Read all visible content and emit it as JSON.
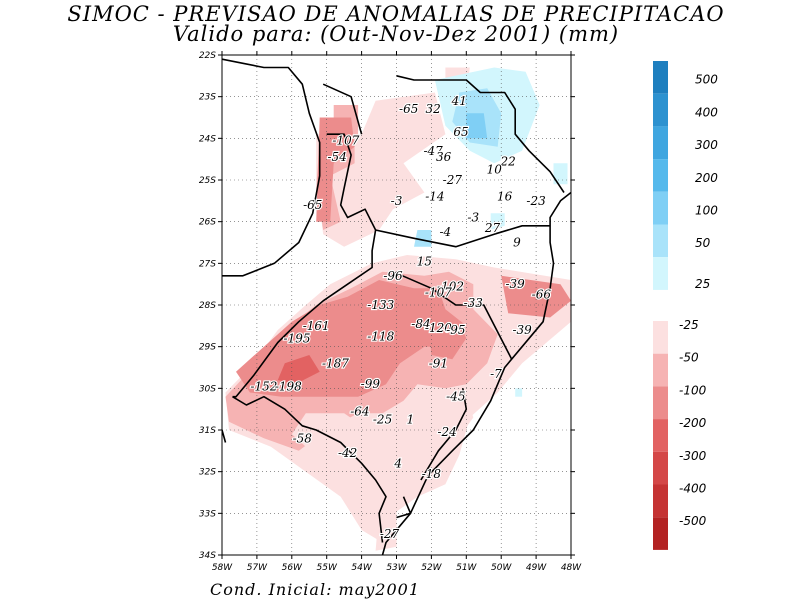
{
  "title_line1": "SIMOC - PREVISAO DE ANOMALIAS DE PRECIPITACAO",
  "title_line2": "Valido para: (Out-Nov-Dez 2001) (mm)",
  "footer": "Cond. Inicial: may2001",
  "lat_ticks": [
    "22S",
    "23S",
    "24S",
    "25S",
    "26S",
    "27S",
    "28S",
    "29S",
    "30S",
    "31S",
    "32S",
    "33S",
    "34S"
  ],
  "lon_ticks": [
    "58W",
    "57W",
    "56W",
    "55W",
    "54W",
    "53W",
    "52W",
    "51W",
    "50W",
    "49W",
    "48W"
  ],
  "colorbar_positive": [
    {
      "label": "500",
      "color": "#1e7fbf"
    },
    {
      "label": "400",
      "color": "#2d92d0"
    },
    {
      "label": "300",
      "color": "#3fa6e0"
    },
    {
      "label": "200",
      "color": "#55b9ec"
    },
    {
      "label": "100",
      "color": "#7fcff5"
    },
    {
      "label": "50",
      "color": "#a9e3fa"
    },
    {
      "label": "25",
      "color": "#d2f6fd"
    }
  ],
  "colorbar_negative": [
    {
      "label": "-25",
      "color": "#fce0e0"
    },
    {
      "label": "-50",
      "color": "#f6b3b3"
    },
    {
      "label": "-100",
      "color": "#ec8c8c"
    },
    {
      "label": "-200",
      "color": "#e26262"
    },
    {
      "label": "-300",
      "color": "#d44747"
    },
    {
      "label": "-400",
      "color": "#c53333"
    },
    {
      "label": "-500",
      "color": "#b32222"
    }
  ],
  "value_labels": [
    {
      "text": "-65",
      "lon": -52.65,
      "lat": -23.3
    },
    {
      "text": "32",
      "lon": -51.95,
      "lat": -23.3
    },
    {
      "text": "41",
      "lon": -51.2,
      "lat": -23.1
    },
    {
      "text": "65",
      "lon": -51.15,
      "lat": -23.85
    },
    {
      "text": "-107",
      "lon": -54.45,
      "lat": -24.05
    },
    {
      "text": "-47",
      "lon": -51.95,
      "lat": -24.3
    },
    {
      "text": "36",
      "lon": -51.65,
      "lat": -24.45
    },
    {
      "text": "22",
      "lon": -49.8,
      "lat": -24.55
    },
    {
      "text": "-54",
      "lon": -54.7,
      "lat": -24.45
    },
    {
      "text": "10",
      "lon": -50.2,
      "lat": -24.75
    },
    {
      "text": "-27",
      "lon": -51.4,
      "lat": -25.0
    },
    {
      "text": "16",
      "lon": -49.9,
      "lat": -25.4
    },
    {
      "text": "-23",
      "lon": -49.0,
      "lat": -25.5
    },
    {
      "text": "-65",
      "lon": -55.4,
      "lat": -25.6
    },
    {
      "text": "-3",
      "lon": -53.0,
      "lat": -25.5
    },
    {
      "text": "-14",
      "lon": -51.9,
      "lat": -25.4
    },
    {
      "text": "-3",
      "lon": -50.8,
      "lat": -25.9
    },
    {
      "text": "27",
      "lon": -50.25,
      "lat": -26.15
    },
    {
      "text": "-4",
      "lon": -51.6,
      "lat": -26.25
    },
    {
      "text": "9",
      "lon": -49.55,
      "lat": -26.5
    },
    {
      "text": "15",
      "lon": -52.2,
      "lat": -26.95
    },
    {
      "text": "-96",
      "lon": -53.1,
      "lat": -27.3
    },
    {
      "text": "-102",
      "lon": -51.45,
      "lat": -27.55
    },
    {
      "text": "-107",
      "lon": -51.8,
      "lat": -27.7
    },
    {
      "text": "-39",
      "lon": -49.6,
      "lat": -27.5
    },
    {
      "text": "-66",
      "lon": -48.85,
      "lat": -27.75
    },
    {
      "text": "-133",
      "lon": -53.45,
      "lat": -28.0
    },
    {
      "text": "-33",
      "lon": -50.8,
      "lat": -27.95
    },
    {
      "text": "-161",
      "lon": -55.3,
      "lat": -28.5
    },
    {
      "text": "-84",
      "lon": -52.3,
      "lat": -28.45
    },
    {
      "text": "-120",
      "lon": -51.8,
      "lat": -28.55
    },
    {
      "text": "-95",
      "lon": -51.3,
      "lat": -28.6
    },
    {
      "text": "-39",
      "lon": -49.4,
      "lat": -28.6
    },
    {
      "text": "-195",
      "lon": -55.85,
      "lat": -28.8
    },
    {
      "text": "-118",
      "lon": -53.45,
      "lat": -28.75
    },
    {
      "text": "-187",
      "lon": -54.75,
      "lat": -29.4
    },
    {
      "text": "-91",
      "lon": -51.8,
      "lat": -29.4
    },
    {
      "text": "-7",
      "lon": -50.15,
      "lat": -29.65
    },
    {
      "text": "-99",
      "lon": -53.75,
      "lat": -29.9
    },
    {
      "text": "-152",
      "lon": -56.8,
      "lat": -29.95
    },
    {
      "text": "-198",
      "lon": -56.1,
      "lat": -29.95
    },
    {
      "text": "-45",
      "lon": -51.3,
      "lat": -30.2
    },
    {
      "text": "-64",
      "lon": -54.05,
      "lat": -30.55
    },
    {
      "text": "-25",
      "lon": -53.4,
      "lat": -30.75
    },
    {
      "text": "1",
      "lon": -52.6,
      "lat": -30.75
    },
    {
      "text": "-24",
      "lon": -51.55,
      "lat": -31.05
    },
    {
      "text": "-58",
      "lon": -55.7,
      "lat": -31.2
    },
    {
      "text": "-42",
      "lon": -54.4,
      "lat": -31.55
    },
    {
      "text": "4",
      "lon": -52.95,
      "lat": -31.8
    },
    {
      "text": "-18",
      "lon": -52.0,
      "lat": -32.05
    },
    {
      "text": "-27",
      "lon": -53.2,
      "lat": -33.5
    }
  ]
}
